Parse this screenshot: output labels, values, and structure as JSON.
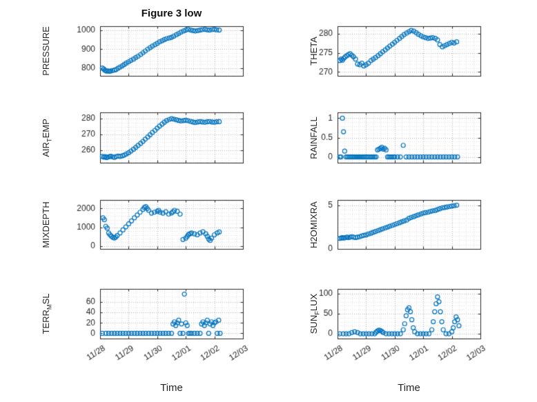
{
  "figure": {
    "title": "Figure 3 low",
    "xlabel": "Time"
  },
  "colors": {
    "marker": "#0072BD",
    "axis": "#262626",
    "grid_major": "#b3b3b3",
    "grid_minor": "#e0e0e0"
  },
  "xaxis": {
    "lim": [
      0,
      5
    ],
    "ticks": [
      0,
      1,
      2,
      3,
      4,
      5
    ],
    "tick_labels": [
      "11/28",
      "11/29",
      "11/30",
      "12/01",
      "12/02",
      "12/03"
    ],
    "minor_step": 0.25,
    "label": "Time"
  },
  "chart_data": [
    {
      "type": "scatter",
      "ylabel": "PRESSURE",
      "row": 0,
      "col": 0,
      "ylim": [
        760,
        1020
      ],
      "yticks": [
        800,
        900,
        1000
      ],
      "ytick_labels": [
        "800",
        "900",
        "1000"
      ],
      "y_minor": 20,
      "x": [
        0.08,
        0.13,
        0.17,
        0.22,
        0.27,
        0.33,
        0.38,
        0.44,
        0.5,
        0.56,
        0.63,
        0.7,
        0.78,
        0.85,
        0.92,
        1,
        1.08,
        1.17,
        1.25,
        1.33,
        1.42,
        1.5,
        1.58,
        1.67,
        1.75,
        1.83,
        1.92,
        2,
        2.08,
        2.17,
        2.25,
        2.33,
        2.42,
        2.5,
        2.58,
        2.67,
        2.75,
        2.83,
        2.92,
        3,
        3.08,
        3.17,
        3.25,
        3.33,
        3.42,
        3.5,
        3.58,
        3.67,
        3.75,
        3.83,
        3.92,
        4,
        4.08,
        4.17
      ],
      "y": [
        801,
        796,
        789,
        785,
        786,
        784,
        786,
        788,
        790,
        793,
        800,
        806,
        813,
        820,
        827,
        834,
        841,
        848,
        856,
        863,
        872,
        881,
        890,
        900,
        908,
        916,
        923,
        930,
        938,
        944,
        950,
        955,
        958,
        962,
        968,
        975,
        982,
        989,
        995,
        1000,
        1003,
        1000,
        997,
        995,
        997,
        1000,
        1002,
        1003,
        1001,
        1000,
        1002,
        1003,
        1001,
        1000
      ]
    },
    {
      "type": "scatter",
      "ylabel": "THETA",
      "row": 0,
      "col": 1,
      "ylim": [
        269,
        282
      ],
      "yticks": [
        270,
        275,
        280
      ],
      "ytick_labels": [
        "270",
        "275",
        "280"
      ],
      "y_minor": 1,
      "x": [
        0.08,
        0.13,
        0.17,
        0.22,
        0.27,
        0.33,
        0.38,
        0.44,
        0.5,
        0.56,
        0.63,
        0.7,
        0.78,
        0.85,
        0.92,
        1,
        1.08,
        1.17,
        1.25,
        1.33,
        1.42,
        1.5,
        1.58,
        1.67,
        1.75,
        1.83,
        1.92,
        2,
        2.08,
        2.17,
        2.25,
        2.33,
        2.42,
        2.5,
        2.58,
        2.67,
        2.75,
        2.83,
        2.92,
        3,
        3.08,
        3.17,
        3.25,
        3.33,
        3.42,
        3.5,
        3.58,
        3.67,
        3.75,
        3.83,
        3.92,
        4,
        4.08,
        4.17
      ],
      "y": [
        273,
        273.4,
        273.1,
        273.6,
        274,
        274.3,
        274.6,
        274.8,
        274.4,
        274,
        273.4,
        272.1,
        271.9,
        272.3,
        271.6,
        271.9,
        272.3,
        273,
        273.4,
        273.8,
        274.3,
        274.8,
        275.3,
        275.8,
        276.3,
        276.8,
        277.3,
        277.8,
        278.3,
        278.8,
        279.3,
        279.8,
        280.2,
        280.6,
        280.9,
        280.7,
        280.3,
        279.9,
        279.5,
        279.2,
        279,
        278.8,
        278.9,
        279,
        278.8,
        278.4,
        277.2,
        276.6,
        276.9,
        277.2,
        277.5,
        277.8,
        277.6,
        277.9
      ]
    },
    {
      "type": "scatter",
      "ylabel": "AIR_TEMP",
      "row": 1,
      "col": 0,
      "ylim": [
        252,
        284
      ],
      "yticks": [
        260,
        270,
        280
      ],
      "ytick_labels": [
        "260",
        "270",
        "280"
      ],
      "y_minor": 2.5,
      "x": [
        0.08,
        0.13,
        0.17,
        0.22,
        0.27,
        0.33,
        0.38,
        0.44,
        0.5,
        0.56,
        0.63,
        0.7,
        0.78,
        0.85,
        0.92,
        1,
        1.08,
        1.17,
        1.25,
        1.33,
        1.42,
        1.5,
        1.58,
        1.67,
        1.75,
        1.83,
        1.92,
        2,
        2.08,
        2.17,
        2.25,
        2.33,
        2.42,
        2.5,
        2.58,
        2.67,
        2.75,
        2.83,
        2.92,
        3,
        3.08,
        3.17,
        3.25,
        3.33,
        3.42,
        3.5,
        3.58,
        3.67,
        3.75,
        3.83,
        3.92,
        4,
        4.08,
        4.17
      ],
      "y": [
        256,
        255.6,
        255.9,
        255.3,
        255.6,
        255.9,
        256.1,
        255.7,
        255.4,
        255.9,
        256.2,
        256,
        256.4,
        256.9,
        257.6,
        258.4,
        259.4,
        260.6,
        261.8,
        263,
        264.3,
        265.6,
        267,
        268.4,
        269.8,
        271.2,
        272.6,
        274,
        275.3,
        276.6,
        277.8,
        278.8,
        279.5,
        280,
        279.7,
        279.3,
        278.9,
        278.6,
        278.8,
        279,
        278.7,
        278.3,
        277.9,
        277.6,
        277.9,
        278.2,
        277.9,
        277.7,
        278,
        278.2,
        277.9,
        277.7,
        278,
        278.1
      ]
    },
    {
      "type": "scatter",
      "ylabel": "RAINFALL",
      "row": 1,
      "col": 1,
      "ylim": [
        -0.15,
        1.15
      ],
      "yticks": [
        0,
        0.5,
        1
      ],
      "ytick_labels": [
        "0",
        "0.5",
        "1"
      ],
      "y_minor": 0.1,
      "x": [
        0.08,
        0.12,
        0.17,
        0.21,
        0.25,
        0.3,
        0.35,
        0.4,
        0.45,
        0.5,
        0.55,
        0.6,
        0.65,
        0.7,
        0.75,
        0.8,
        0.85,
        0.9,
        0.95,
        1,
        1.05,
        1.1,
        1.15,
        1.2,
        1.25,
        1.3,
        1.35,
        1.4,
        1.45,
        1.5,
        1.55,
        1.6,
        1.65,
        1.7,
        1.75,
        1.8,
        1.85,
        1.9,
        1.95,
        2,
        2.1,
        2.2,
        2.3,
        2.4,
        2.5,
        2.6,
        2.7,
        2.8,
        2.9,
        3,
        3.1,
        3.2,
        3.3,
        3.4,
        3.5,
        3.6,
        3.7,
        3.8,
        3.9,
        4,
        4.1,
        4.2
      ],
      "y": [
        0,
        0,
        1,
        0.65,
        0.15,
        0,
        0,
        0,
        0,
        0,
        0,
        0,
        0,
        0,
        0,
        0,
        0,
        0,
        0,
        0,
        0,
        0,
        0,
        0,
        0,
        0,
        0,
        0.18,
        0.2,
        0.22,
        0.25,
        0.2,
        0.22,
        0.18,
        0,
        0,
        0,
        0,
        0,
        0,
        0,
        0,
        0.3,
        0,
        0,
        0,
        0,
        0,
        0,
        0,
        0,
        0,
        0,
        0,
        0,
        0,
        0,
        0,
        0,
        0,
        0,
        0
      ]
    },
    {
      "type": "scatter",
      "ylabel": "MIXDEPTH",
      "row": 2,
      "col": 0,
      "ylim": [
        -150,
        2450
      ],
      "yticks": [
        0,
        1000,
        2000
      ],
      "ytick_labels": [
        "0",
        "1000",
        "2000"
      ],
      "y_minor": 200,
      "x": [
        0.1,
        0.15,
        0.2,
        0.25,
        0.3,
        0.35,
        0.4,
        0.45,
        0.5,
        0.55,
        0.6,
        0.7,
        0.8,
        0.9,
        1,
        1.1,
        1.2,
        1.3,
        1.4,
        1.5,
        1.55,
        1.6,
        1.65,
        1.7,
        1.8,
        1.9,
        2,
        2.05,
        2.1,
        2.2,
        2.3,
        2.4,
        2.5,
        2.55,
        2.6,
        2.7,
        2.8,
        2.9,
        3,
        3.05,
        3.1,
        3.15,
        3.2,
        3.3,
        3.4,
        3.5,
        3.6,
        3.7,
        3.75,
        3.8,
        3.85,
        3.9,
        4,
        4.1,
        4.17
      ],
      "y": [
        1500,
        1400,
        1050,
        950,
        700,
        600,
        520,
        460,
        430,
        480,
        560,
        700,
        860,
        1020,
        1180,
        1340,
        1500,
        1650,
        1800,
        1950,
        2050,
        2100,
        2000,
        1900,
        1750,
        1800,
        1850,
        1900,
        1800,
        1750,
        1820,
        1700,
        1760,
        1820,
        1900,
        1850,
        1700,
        350,
        420,
        520,
        620,
        660,
        700,
        650,
        600,
        700,
        760,
        650,
        520,
        380,
        300,
        420,
        600,
        700,
        750
      ]
    },
    {
      "type": "scatter",
      "ylabel": "H2OMIXRA",
      "row": 2,
      "col": 1,
      "ylim": [
        0,
        5.6
      ],
      "yticks": [
        0,
        5
      ],
      "ytick_labels": [
        "0",
        "5"
      ],
      "y_minor": 0.5,
      "x": [
        0.08,
        0.13,
        0.17,
        0.22,
        0.27,
        0.33,
        0.38,
        0.44,
        0.5,
        0.56,
        0.63,
        0.7,
        0.78,
        0.85,
        0.92,
        1,
        1.08,
        1.17,
        1.25,
        1.33,
        1.42,
        1.5,
        1.58,
        1.67,
        1.75,
        1.83,
        1.92,
        2,
        2.08,
        2.17,
        2.25,
        2.33,
        2.42,
        2.5,
        2.58,
        2.67,
        2.75,
        2.83,
        2.92,
        3,
        3.08,
        3.17,
        3.25,
        3.33,
        3.42,
        3.5,
        3.58,
        3.67,
        3.75,
        3.83,
        3.92,
        4,
        4.08,
        4.17
      ],
      "y": [
        1.2,
        1.25,
        1.3,
        1.25,
        1.3,
        1.35,
        1.3,
        1.35,
        1.4,
        1.35,
        1.3,
        1.35,
        1.4,
        1.5,
        1.55,
        1.6,
        1.7,
        1.8,
        1.9,
        2,
        2.1,
        2.2,
        2.3,
        2.4,
        2.5,
        2.6,
        2.7,
        2.8,
        2.9,
        3,
        3.1,
        3.2,
        3.3,
        3.5,
        3.6,
        3.7,
        3.8,
        3.9,
        4,
        4.1,
        4.15,
        4.2,
        4.3,
        4.35,
        4.4,
        4.5,
        4.6,
        4.7,
        4.75,
        4.8,
        4.85,
        4.9,
        4.95,
        5
      ]
    },
    {
      "type": "scatter",
      "ylabel": "TERR_MSL",
      "row": 3,
      "col": 0,
      "ylim": [
        -10,
        85
      ],
      "yticks": [
        0,
        20,
        40,
        60
      ],
      "ytick_labels": [
        "0",
        "20",
        "40",
        "60"
      ],
      "y_minor": 10,
      "x": [
        0.08,
        0.2,
        0.3,
        0.4,
        0.5,
        0.6,
        0.7,
        0.8,
        0.9,
        1,
        1.1,
        1.2,
        1.3,
        1.4,
        1.5,
        1.6,
        1.7,
        1.8,
        1.9,
        2,
        2.1,
        2.2,
        2.3,
        2.4,
        2.5,
        2.55,
        2.6,
        2.65,
        2.7,
        2.75,
        2.8,
        2.85,
        2.9,
        2.95,
        3,
        3.05,
        3.1,
        3.15,
        3.2,
        3.3,
        3.4,
        3.5,
        3.55,
        3.6,
        3.65,
        3.7,
        3.75,
        3.8,
        3.85,
        3.9,
        3.95,
        4,
        4.05,
        4.1,
        4.15,
        4.2
      ],
      "y": [
        0,
        0,
        0,
        0,
        0,
        0,
        0,
        0,
        0,
        0,
        0,
        0,
        0,
        0,
        0,
        0,
        0,
        0,
        0,
        0,
        0,
        0,
        0,
        0,
        0,
        18,
        22,
        15,
        20,
        25,
        0,
        18,
        0,
        75,
        20,
        15,
        0,
        0,
        0,
        0,
        0,
        0,
        18,
        22,
        15,
        20,
        25,
        0,
        18,
        22,
        15,
        20,
        22,
        0,
        25,
        0
      ]
    },
    {
      "type": "scatter",
      "ylabel": "SUN_FLUX",
      "row": 3,
      "col": 1,
      "ylim": [
        -12,
        112
      ],
      "yticks": [
        0,
        50,
        100
      ],
      "ytick_labels": [
        "0",
        "50",
        "100"
      ],
      "y_minor": 10,
      "x": [
        0.08,
        0.2,
        0.3,
        0.4,
        0.5,
        0.6,
        0.7,
        0.8,
        0.9,
        1,
        1.1,
        1.2,
        1.3,
        1.35,
        1.4,
        1.45,
        1.5,
        1.55,
        1.6,
        1.7,
        1.8,
        1.9,
        2,
        2.1,
        2.2,
        2.3,
        2.35,
        2.4,
        2.45,
        2.5,
        2.55,
        2.6,
        2.65,
        2.7,
        2.8,
        2.9,
        3,
        3.1,
        3.2,
        3.3,
        3.35,
        3.4,
        3.45,
        3.5,
        3.55,
        3.6,
        3.65,
        3.7,
        3.8,
        3.9,
        4,
        4.05,
        4.1,
        4.15,
        4.2,
        4.25
      ],
      "y": [
        0,
        0,
        0,
        0,
        3,
        5,
        3,
        0,
        0,
        0,
        0,
        0,
        0,
        4,
        7,
        9,
        8,
        6,
        3,
        0,
        0,
        0,
        0,
        0,
        0,
        10,
        25,
        45,
        60,
        65,
        55,
        35,
        15,
        5,
        0,
        0,
        0,
        0,
        0,
        10,
        30,
        55,
        75,
        92,
        80,
        55,
        30,
        10,
        0,
        0,
        5,
        15,
        30,
        42,
        35,
        20
      ]
    }
  ]
}
